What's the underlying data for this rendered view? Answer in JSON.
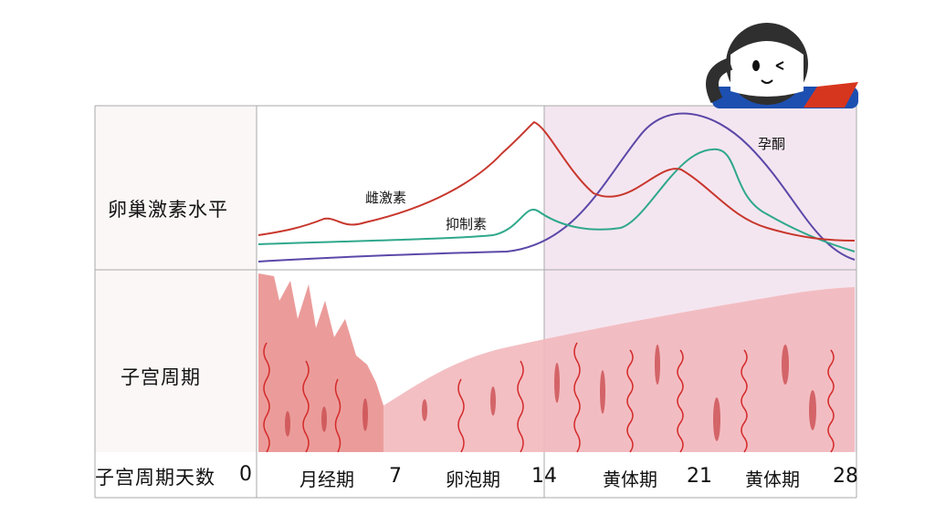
{
  "rows": {
    "hormone": "卵巢激素水平",
    "uterus": "子宫周期",
    "days": "子宫周期天数"
  },
  "curves": {
    "estrogen": "雌激素",
    "inhibin": "抑制素",
    "progesterone": "孕酮"
  },
  "axis": {
    "days": [
      "0",
      "7",
      "14",
      "21",
      "28"
    ],
    "phases": [
      "月经期",
      "卵泡期",
      "黄体期",
      "黄体期"
    ]
  },
  "colors": {
    "estrogen": "#c8372d",
    "inhibin": "#2fa88c",
    "progesterone": "#5b48a8",
    "luteal_bg": "#f3e4ef",
    "tissue": "#f2b8bc",
    "tissue_dark": "#d9635e",
    "vessel": "#d42a2a"
  },
  "mascot": {
    "icon": "cartoon-girl-icon"
  }
}
